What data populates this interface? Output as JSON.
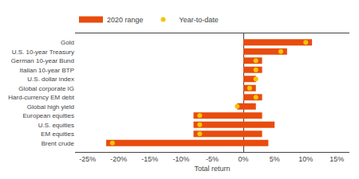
{
  "chart_data": {
    "type": "bar",
    "orientation": "horizontal",
    "title": "",
    "xlabel": "Total return",
    "categories": [
      "Brent crude",
      "EM equities",
      "U.S. equities",
      "European equities",
      "Global high yield",
      "Hard-currency EM debt",
      "Global corporate IG",
      "U.S. dollar index",
      "Italian 10-year BTP",
      "German 10-year Bund",
      "U.S. 10-year Treasury",
      "Gold"
    ],
    "series": [
      {
        "name": "2020 range",
        "type": "bar",
        "color": "#e84c0e",
        "min": [
          -22,
          -8,
          -8,
          -8,
          -1,
          0,
          0,
          0,
          0,
          0,
          0,
          0
        ],
        "max": [
          4,
          3,
          5,
          3,
          2,
          3,
          2,
          2,
          3,
          3,
          7,
          11
        ]
      },
      {
        "name": "Year-to-date",
        "type": "scatter",
        "marker": "circle",
        "color": "#f5c500",
        "values": [
          -21,
          -7,
          -7,
          -7,
          -1,
          2,
          1,
          2,
          2,
          2,
          6,
          10
        ]
      }
    ],
    "xlim": [
      -27,
      17
    ],
    "xticks": [
      {
        "value": -25,
        "label": "-25%"
      },
      {
        "value": -20,
        "label": "-20%"
      },
      {
        "value": -15,
        "label": "-15%"
      },
      {
        "value": -10,
        "label": "-10%"
      },
      {
        "value": -5,
        "label": "-5%"
      },
      {
        "value": 0,
        "label": "0%"
      },
      {
        "value": 5,
        "label": "5%"
      },
      {
        "value": 10,
        "label": "10%"
      },
      {
        "value": 15,
        "label": "15%"
      }
    ],
    "grid": false,
    "legend": "upper left"
  }
}
